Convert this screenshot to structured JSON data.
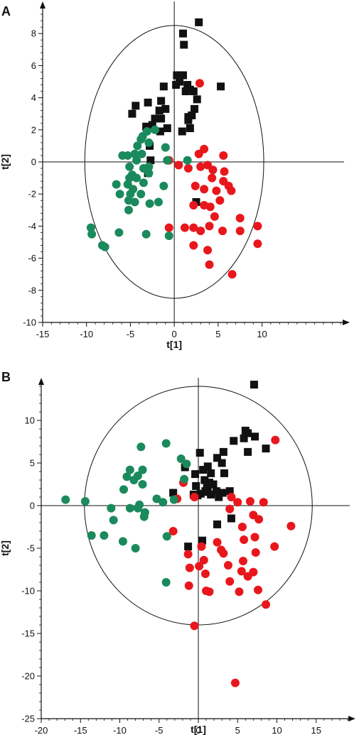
{
  "colors": {
    "black": "#111111",
    "red": "#e8171c",
    "green": "#1a8a5c",
    "axis": "#111111"
  },
  "chart_data": [
    {
      "type": "scatter",
      "panel_label": "A",
      "xlabel": "t[1]",
      "ylabel": "t[2]",
      "xlim": [
        -15,
        20
      ],
      "ylim": [
        -10,
        10
      ],
      "xticks": [
        -15,
        -10,
        -5,
        0,
        5,
        10
      ],
      "yticks": [
        -10,
        -8,
        -6,
        -4,
        -2,
        0,
        2,
        4,
        6,
        8
      ],
      "ellipse": {
        "cx": 0,
        "cy": 0,
        "rx": 10.2,
        "ry": 8.5
      },
      "series": [
        {
          "color": "black",
          "marker": "square",
          "points": [
            [
              1.0,
              8.0
            ],
            [
              2.8,
              8.7
            ],
            [
              1.1,
              7.3
            ],
            [
              0.8,
              5.4
            ],
            [
              0.3,
              5.4
            ],
            [
              1.0,
              5.4
            ],
            [
              0.6,
              5.0
            ],
            [
              0.2,
              4.8
            ],
            [
              1.5,
              4.8
            ],
            [
              1.8,
              4.5
            ],
            [
              1.3,
              4.4
            ],
            [
              2.2,
              4.4
            ],
            [
              5.3,
              4.7
            ],
            [
              -1.2,
              4.7
            ],
            [
              2.6,
              3.9
            ],
            [
              -1.5,
              3.8
            ],
            [
              -4.4,
              3.5
            ],
            [
              -3.0,
              3.7
            ],
            [
              -4.8,
              3.0
            ],
            [
              -1.0,
              3.3
            ],
            [
              -1.7,
              3.2
            ],
            [
              2.3,
              3.3
            ],
            [
              -1.5,
              2.7
            ],
            [
              -2.2,
              2.7
            ],
            [
              1.6,
              2.8
            ],
            [
              2.0,
              2.9
            ],
            [
              1.6,
              2.6
            ],
            [
              -2.5,
              2.3
            ],
            [
              -3.2,
              2.2
            ],
            [
              -1.6,
              1.9
            ],
            [
              -0.8,
              2.1
            ],
            [
              0.9,
              1.9
            ],
            [
              1.8,
              2.1
            ],
            [
              -2.8,
              1.0
            ],
            [
              -2.7,
              0.1
            ],
            [
              -3.0,
              -0.7
            ],
            [
              2.5,
              -2.5
            ]
          ]
        },
        {
          "color": "red",
          "marker": "circle",
          "points": [
            [
              2.9,
              4.9
            ],
            [
              -0.6,
              0.1
            ],
            [
              0.5,
              -0.2
            ],
            [
              1.6,
              -0.4
            ],
            [
              2.8,
              0.5
            ],
            [
              3.4,
              0.8
            ],
            [
              3.0,
              -0.3
            ],
            [
              5.6,
              0.4
            ],
            [
              3.8,
              -0.2
            ],
            [
              5.7,
              -0.6
            ],
            [
              4.4,
              -0.5
            ],
            [
              5.6,
              -1.2
            ],
            [
              2.4,
              -1.5
            ],
            [
              3.4,
              -1.7
            ],
            [
              4.3,
              -1.0
            ],
            [
              4.8,
              -1.8
            ],
            [
              6.2,
              -1.5
            ],
            [
              6.5,
              -1.8
            ],
            [
              2.2,
              -2.7
            ],
            [
              3.4,
              -2.7
            ],
            [
              5.2,
              -2.4
            ],
            [
              4.1,
              -2.8
            ],
            [
              4.6,
              -3.4
            ],
            [
              2.2,
              -4.1
            ],
            [
              4.0,
              -4.0
            ],
            [
              3.0,
              -4.3
            ],
            [
              1.2,
              -4.1
            ],
            [
              -0.6,
              -4.1
            ],
            [
              7.5,
              -3.5
            ],
            [
              5.5,
              -4.3
            ],
            [
              7.5,
              -4.3
            ],
            [
              9.5,
              -4.0
            ],
            [
              2.2,
              -5.2
            ],
            [
              9.5,
              -5.1
            ],
            [
              3.8,
              -5.5
            ],
            [
              4.0,
              -6.4
            ],
            [
              6.6,
              -7.0
            ]
          ]
        },
        {
          "color": "green",
          "marker": "circle",
          "points": [
            [
              -2.2,
              2.0
            ],
            [
              -3.1,
              1.9
            ],
            [
              -3.6,
              1.6
            ],
            [
              -2.9,
              1.2
            ],
            [
              -3.8,
              1.4
            ],
            [
              -4.2,
              1.0
            ],
            [
              -3.7,
              0.5
            ],
            [
              -4.5,
              0.5
            ],
            [
              -1.0,
              0.9
            ],
            [
              -0.8,
              0.1
            ],
            [
              1.5,
              0.1
            ],
            [
              -5.9,
              0.4
            ],
            [
              -5.3,
              0.4
            ],
            [
              -5.1,
              -0.3
            ],
            [
              -4.3,
              0.1
            ],
            [
              -2.9,
              -0.3
            ],
            [
              -3.5,
              -0.4
            ],
            [
              -2.9,
              -0.7
            ],
            [
              -4.8,
              -0.8
            ],
            [
              -5.1,
              -1.0
            ],
            [
              -4.3,
              -1.0
            ],
            [
              -5.3,
              -1.4
            ],
            [
              -6.6,
              -1.4
            ],
            [
              -3.5,
              -1.3
            ],
            [
              -4.7,
              -1.7
            ],
            [
              -1.2,
              -1.5
            ],
            [
              -5.0,
              -2.0
            ],
            [
              -6.2,
              -2.0
            ],
            [
              -3.8,
              -2.0
            ],
            [
              -5.2,
              -2.4
            ],
            [
              -4.5,
              -2.5
            ],
            [
              -2.8,
              -2.6
            ],
            [
              -1.8,
              -2.5
            ],
            [
              -5.2,
              -3.0
            ],
            [
              -9.5,
              -4.1
            ],
            [
              -9.4,
              -4.5
            ],
            [
              -6.3,
              -4.4
            ],
            [
              -3.2,
              -4.5
            ],
            [
              -0.6,
              -4.6
            ],
            [
              -8.2,
              -5.2
            ],
            [
              -7.9,
              -5.3
            ]
          ]
        }
      ]
    },
    {
      "type": "scatter",
      "panel_label": "B",
      "xlabel": "t[1]",
      "ylabel": "t[2]",
      "xlim": [
        -20,
        20
      ],
      "ylim": [
        -25,
        15
      ],
      "xticks": [
        -20,
        -15,
        -10,
        -5,
        0,
        5,
        10,
        15
      ],
      "yticks": [
        -25,
        -20,
        -15,
        -10,
        -5,
        0,
        5,
        10
      ],
      "ellipse": {
        "cx": 0,
        "cy": 0,
        "rx": 14.5,
        "ry": 14.0
      },
      "series": [
        {
          "color": "black",
          "marker": "square",
          "points": [
            [
              7.1,
              14.2
            ],
            [
              6.0,
              8.8
            ],
            [
              6.3,
              8.5
            ],
            [
              7.2,
              8.1
            ],
            [
              5.8,
              7.9
            ],
            [
              4.5,
              7.6
            ],
            [
              8.6,
              6.7
            ],
            [
              3.2,
              6.3
            ],
            [
              6.3,
              6.3
            ],
            [
              0.2,
              6.2
            ],
            [
              2.4,
              5.6
            ],
            [
              -1.7,
              4.5
            ],
            [
              3.0,
              5.0
            ],
            [
              1.2,
              4.6
            ],
            [
              0.6,
              4.2
            ],
            [
              -0.4,
              3.7
            ],
            [
              1.6,
              3.8
            ],
            [
              3.3,
              3.8
            ],
            [
              0.8,
              3.0
            ],
            [
              1.4,
              2.7
            ],
            [
              1.9,
              2.5
            ],
            [
              1.1,
              2.2
            ],
            [
              -0.3,
              2.3
            ],
            [
              0.9,
              1.7
            ],
            [
              0.3,
              1.4
            ],
            [
              -0.6,
              1.3
            ],
            [
              1.2,
              1.6
            ],
            [
              2.3,
              1.7
            ],
            [
              1.6,
              1.3
            ],
            [
              -3.2,
              1.5
            ],
            [
              2.6,
              1.0
            ],
            [
              3.1,
              1.5
            ],
            [
              4.0,
              1.7
            ],
            [
              -0.1,
              1.2
            ],
            [
              4.2,
              -1.5
            ],
            [
              2.4,
              -2.2
            ],
            [
              0.5,
              -4.1
            ],
            [
              -1.3,
              -4.8
            ]
          ]
        },
        {
          "color": "red",
          "marker": "circle",
          "points": [
            [
              9.8,
              7.7
            ],
            [
              -1.9,
              2.7
            ],
            [
              -0.5,
              1.0
            ],
            [
              -2.7,
              0.8
            ],
            [
              4.2,
              1.0
            ],
            [
              6.6,
              0.5
            ],
            [
              5.0,
              0.4
            ],
            [
              8.3,
              0.4
            ],
            [
              4.0,
              -0.4
            ],
            [
              7.0,
              -1.1
            ],
            [
              7.7,
              -1.6
            ],
            [
              11.8,
              -2.4
            ],
            [
              5.6,
              -2.5
            ],
            [
              2.4,
              -4.3
            ],
            [
              -3.2,
              -3.0
            ],
            [
              0.4,
              -4.8
            ],
            [
              7.2,
              -3.7
            ],
            [
              5.8,
              -4.0
            ],
            [
              9.7,
              -4.8
            ],
            [
              2.9,
              -5.2
            ],
            [
              7.3,
              -5.5
            ],
            [
              -1.3,
              -5.7
            ],
            [
              0.7,
              -6.4
            ],
            [
              3.2,
              -5.6
            ],
            [
              5.7,
              -6.5
            ],
            [
              3.8,
              -7.0
            ],
            [
              0.1,
              -7.1
            ],
            [
              5.5,
              -7.7
            ],
            [
              -1.1,
              -7.3
            ],
            [
              7.0,
              -7.8
            ],
            [
              0.9,
              -8.0
            ],
            [
              6.3,
              -8.3
            ],
            [
              -1.2,
              -9.4
            ],
            [
              4.0,
              -8.9
            ],
            [
              7.6,
              -9.9
            ],
            [
              1.0,
              -10.0
            ],
            [
              1.4,
              -10.1
            ],
            [
              5.2,
              -10.1
            ],
            [
              8.6,
              -11.6
            ],
            [
              -0.5,
              -14.1
            ],
            [
              4.7,
              -20.8
            ]
          ]
        },
        {
          "color": "green",
          "marker": "circle",
          "points": [
            [
              -7.3,
              6.9
            ],
            [
              -4.1,
              7.3
            ],
            [
              -2.2,
              5.5
            ],
            [
              -1.5,
              4.9
            ],
            [
              -8.7,
              4.2
            ],
            [
              -7.1,
              4.2
            ],
            [
              -9.1,
              3.4
            ],
            [
              -7.7,
              3.5
            ],
            [
              -8.2,
              3.0
            ],
            [
              -1.8,
              3.1
            ],
            [
              -7.1,
              2.5
            ],
            [
              -9.5,
              1.9
            ],
            [
              -5.3,
              0.8
            ],
            [
              -3.1,
              0.7
            ],
            [
              -4.5,
              0.4
            ],
            [
              -16.9,
              0.7
            ],
            [
              -14.4,
              0.5
            ],
            [
              -7.5,
              0.1
            ],
            [
              -8.7,
              -0.3
            ],
            [
              -7.7,
              -0.3
            ],
            [
              -6.8,
              -0.8
            ],
            [
              -11.1,
              -0.3
            ],
            [
              -6.9,
              -1.3
            ],
            [
              -10.8,
              -1.7
            ],
            [
              -13.6,
              -3.5
            ],
            [
              -12.0,
              -3.5
            ],
            [
              -9.6,
              -4.2
            ],
            [
              -4.0,
              -3.6
            ],
            [
              -8.0,
              -5.0
            ],
            [
              -4.1,
              -9.0
            ]
          ]
        }
      ]
    }
  ]
}
